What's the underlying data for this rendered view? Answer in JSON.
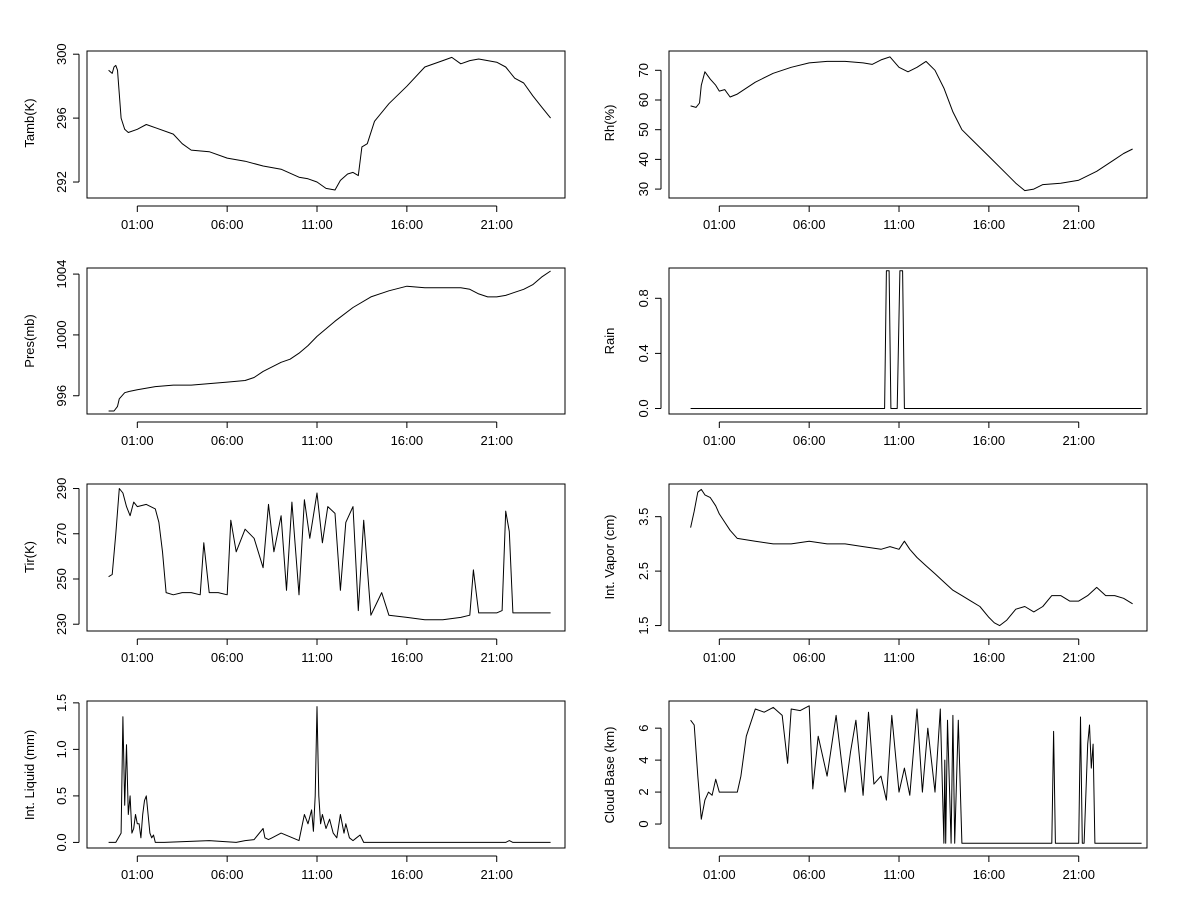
{
  "figure": {
    "background": "#ffffff",
    "line_color": "#000000"
  },
  "chart_data": [
    {
      "type": "line",
      "ylabel": "Tamb(K)",
      "xlabel": "",
      "x_ticks": [
        "01:00",
        "06:00",
        "11:00",
        "16:00",
        "21:00"
      ],
      "x_tick_hours": [
        1,
        6,
        11,
        16,
        21
      ],
      "xlim": [
        -1.8,
        24.8
      ],
      "y_ticks": [
        "292",
        "296",
        "300"
      ],
      "y_tick_values": [
        292,
        296,
        300
      ],
      "ylim": [
        291,
        300.2
      ],
      "series": [
        {
          "name": "Tamb",
          "x": [
            -0.6,
            -0.4,
            -0.3,
            -0.2,
            -0.1,
            0,
            0.1,
            0.3,
            0.5,
            1,
            1.5,
            2,
            3,
            3.5,
            4,
            5,
            6,
            7,
            8,
            9,
            10,
            10.5,
            11,
            11.5,
            12,
            12.3,
            12.7,
            13,
            13.3,
            13.5,
            13.8,
            14.2,
            15,
            16,
            17,
            18,
            18.5,
            19,
            19.5,
            20,
            20.5,
            21,
            21.5,
            22,
            22.5,
            23,
            23.5,
            24
          ],
          "y": [
            299,
            298.8,
            299.2,
            299.3,
            299,
            297.5,
            296,
            295.3,
            295.1,
            295.3,
            295.6,
            295.4,
            295,
            294.4,
            294,
            293.9,
            293.5,
            293.3,
            293,
            292.8,
            292.3,
            292.2,
            292,
            291.6,
            291.5,
            292.1,
            292.5,
            292.6,
            292.4,
            294.2,
            294.4,
            295.8,
            296.9,
            298,
            299.2,
            299.6,
            299.8,
            299.4,
            299.6,
            299.7,
            299.6,
            299.5,
            299.2,
            298.5,
            298.2,
            297.4,
            296.7,
            296
          ]
        }
      ]
    },
    {
      "type": "line",
      "ylabel": "Rh(%)",
      "xlabel": "",
      "x_ticks": [
        "01:00",
        "06:00",
        "11:00",
        "16:00",
        "21:00"
      ],
      "x_tick_hours": [
        1,
        6,
        11,
        16,
        21
      ],
      "xlim": [
        -1.8,
        24.8
      ],
      "y_ticks": [
        "30",
        "40",
        "50",
        "60",
        "70"
      ],
      "y_tick_values": [
        30,
        40,
        50,
        60,
        70
      ],
      "ylim": [
        27,
        76.5
      ],
      "series": [
        {
          "name": "Rh",
          "x": [
            -0.6,
            -0.3,
            -0.1,
            0,
            0.2,
            0.5,
            0.8,
            1,
            1.3,
            1.6,
            2,
            3,
            4,
            5,
            6,
            7,
            8,
            9,
            9.5,
            10,
            10.5,
            11,
            11.5,
            12,
            12.5,
            13,
            13.5,
            14,
            14.5,
            15,
            16,
            17,
            17.5,
            18,
            18.5,
            19,
            20,
            21,
            22,
            23,
            23.5,
            24
          ],
          "y": [
            58,
            57.5,
            59,
            65,
            69.5,
            67,
            65,
            63,
            63.5,
            61,
            62,
            66,
            69,
            71,
            72.5,
            73,
            73,
            72.5,
            72,
            73.5,
            74.5,
            71,
            69.5,
            71,
            73,
            70,
            64,
            56,
            50,
            47,
            41,
            35,
            32,
            29.5,
            30,
            31.5,
            32,
            33,
            36,
            40,
            42,
            43.5
          ]
        }
      ]
    },
    {
      "type": "line",
      "ylabel": "Pres(mb)",
      "xlabel": "",
      "x_ticks": [
        "01:00",
        "06:00",
        "11:00",
        "16:00",
        "21:00"
      ],
      "x_tick_hours": [
        1,
        6,
        11,
        16,
        21
      ],
      "xlim": [
        -1.8,
        24.8
      ],
      "y_ticks": [
        "996",
        "1000",
        "1004"
      ],
      "y_tick_values": [
        996,
        1000,
        1004
      ],
      "ylim": [
        994.8,
        1004.4
      ],
      "series": [
        {
          "name": "Pres",
          "x": [
            -0.6,
            -0.3,
            -0.1,
            0,
            0.3,
            0.6,
            1,
            2,
            3,
            4,
            5,
            6,
            7,
            7.5,
            8,
            9,
            9.5,
            10,
            10.5,
            11,
            12,
            13,
            14,
            15,
            16,
            17,
            18,
            19,
            19.5,
            20,
            20.5,
            21,
            21.5,
            22,
            22.5,
            23,
            23.5,
            24
          ],
          "y": [
            995,
            995,
            995.3,
            995.8,
            996.2,
            996.3,
            996.4,
            996.6,
            996.7,
            996.7,
            996.8,
            996.9,
            997,
            997.2,
            997.6,
            998.2,
            998.4,
            998.8,
            999.3,
            999.9,
            1000.9,
            1001.8,
            1002.5,
            1002.9,
            1003.2,
            1003.1,
            1003.1,
            1003.1,
            1003,
            1002.7,
            1002.5,
            1002.5,
            1002.6,
            1002.8,
            1003,
            1003.3,
            1003.8,
            1004.2
          ]
        }
      ]
    },
    {
      "type": "line",
      "ylabel": "Rain",
      "xlabel": "",
      "x_ticks": [
        "01:00",
        "06:00",
        "11:00",
        "16:00",
        "21:00"
      ],
      "x_tick_hours": [
        1,
        6,
        11,
        16,
        21
      ],
      "xlim": [
        -1.8,
        24.8
      ],
      "y_ticks": [
        "0.0",
        "0.4",
        "0.8"
      ],
      "y_tick_values": [
        0,
        0.4,
        0.8
      ],
      "ylim": [
        -0.04,
        1.02
      ],
      "series": [
        {
          "name": "Rain",
          "x": [
            -0.6,
            10.2,
            10.3,
            10.45,
            10.55,
            10.7,
            10.9,
            11.05,
            11.2,
            11.3,
            24.5
          ],
          "y": [
            0,
            0,
            1,
            1,
            0,
            0,
            0,
            1,
            1,
            0,
            0
          ]
        }
      ]
    },
    {
      "type": "line",
      "ylabel": "Tir(K)",
      "xlabel": "",
      "x_ticks": [
        "01:00",
        "06:00",
        "11:00",
        "16:00",
        "21:00"
      ],
      "x_tick_hours": [
        1,
        6,
        11,
        16,
        21
      ],
      "xlim": [
        -1.8,
        24.8
      ],
      "y_ticks": [
        "230",
        "250",
        "270",
        "290"
      ],
      "y_tick_values": [
        230,
        250,
        270,
        290
      ],
      "ylim": [
        227,
        292
      ],
      "series": [
        {
          "name": "Tir",
          "x": [
            -0.6,
            -0.4,
            -0.2,
            0,
            0.2,
            0.4,
            0.6,
            0.8,
            1,
            1.5,
            2,
            2.2,
            2.4,
            2.6,
            3,
            3.5,
            4,
            4.5,
            4.7,
            5,
            5.5,
            6,
            6.2,
            6.5,
            7,
            7.5,
            8,
            8.3,
            8.6,
            9,
            9.3,
            9.6,
            10,
            10.3,
            10.6,
            11,
            11.3,
            11.6,
            12,
            12.3,
            12.6,
            13,
            13.3,
            13.6,
            14,
            14.3,
            14.6,
            15,
            16,
            17,
            18,
            19,
            19.5,
            19.7,
            20,
            21,
            21.3,
            21.5,
            21.7,
            21.9,
            22,
            22.5,
            23,
            24
          ],
          "y": [
            251,
            252,
            270,
            290,
            288,
            282,
            278,
            284,
            282,
            283,
            281,
            275,
            262,
            244,
            243,
            244,
            244,
            243,
            266,
            244,
            244,
            243,
            276,
            262,
            272,
            268,
            255,
            283,
            262,
            278,
            245,
            284,
            243,
            285,
            268,
            288,
            266,
            282,
            279,
            245,
            275,
            282,
            236,
            276,
            234,
            239,
            244,
            234,
            233,
            232,
            232,
            233,
            234,
            254,
            235,
            235,
            236,
            280,
            271,
            235,
            235,
            235,
            235,
            235
          ]
        }
      ]
    },
    {
      "type": "line",
      "ylabel": "Int. Vapor (cm)",
      "xlabel": "",
      "x_ticks": [
        "01:00",
        "06:00",
        "11:00",
        "16:00",
        "21:00"
      ],
      "x_tick_hours": [
        1,
        6,
        11,
        16,
        21
      ],
      "xlim": [
        -1.8,
        24.8
      ],
      "y_ticks": [
        "1.5",
        "2.5",
        "3.5"
      ],
      "y_tick_values": [
        1.5,
        2.5,
        3.5
      ],
      "ylim": [
        1.4,
        4.1
      ],
      "series": [
        {
          "name": "Int. Vapor",
          "x": [
            -0.6,
            -0.4,
            -0.2,
            0,
            0.2,
            0.5,
            0.8,
            1,
            1.3,
            1.6,
            2,
            3,
            4,
            5,
            6,
            7,
            8,
            9,
            10,
            10.5,
            11,
            11.3,
            11.6,
            12,
            12.5,
            13,
            13.5,
            14,
            14.5,
            15,
            15.5,
            16,
            16.3,
            16.6,
            17,
            17.5,
            18,
            18.5,
            19,
            19.5,
            20,
            20.5,
            21,
            21.5,
            22,
            22.5,
            23,
            23.5,
            24
          ],
          "y": [
            3.3,
            3.6,
            3.95,
            4,
            3.9,
            3.85,
            3.7,
            3.55,
            3.4,
            3.25,
            3.1,
            3.05,
            3,
            3,
            3.05,
            3,
            3,
            2.95,
            2.9,
            2.95,
            2.9,
            3.05,
            2.9,
            2.75,
            2.6,
            2.45,
            2.3,
            2.15,
            2.05,
            1.95,
            1.85,
            1.65,
            1.55,
            1.5,
            1.6,
            1.8,
            1.85,
            1.75,
            1.85,
            2.05,
            2.05,
            1.95,
            1.95,
            2.05,
            2.2,
            2.05,
            2.05,
            2,
            1.9
          ]
        }
      ]
    },
    {
      "type": "line",
      "ylabel": "Int. Liquid (mm)",
      "xlabel": "",
      "x_ticks": [
        "01:00",
        "06:00",
        "11:00",
        "16:00",
        "21:00"
      ],
      "x_tick_hours": [
        1,
        6,
        11,
        16,
        21
      ],
      "xlim": [
        -1.8,
        24.8
      ],
      "y_ticks": [
        "0.0",
        "0.5",
        "1.0",
        "1.5"
      ],
      "y_tick_values": [
        0,
        0.5,
        1,
        1.5
      ],
      "ylim": [
        -0.06,
        1.52
      ],
      "series": [
        {
          "name": "Int. Liquid",
          "x": [
            -0.6,
            -0.2,
            0.1,
            0.2,
            0.3,
            0.4,
            0.5,
            0.6,
            0.7,
            0.8,
            0.9,
            1,
            1.1,
            1.2,
            1.3,
            1.4,
            1.5,
            1.6,
            1.7,
            1.8,
            1.9,
            2,
            2.5,
            5,
            6.5,
            7,
            7.5,
            8,
            8.1,
            8.3,
            8.5,
            9,
            9.5,
            10,
            10.3,
            10.5,
            10.7,
            10.8,
            10.9,
            11,
            11.1,
            11.2,
            11.3,
            11.5,
            11.7,
            11.9,
            12.1,
            12.3,
            12.5,
            12.6,
            12.8,
            13,
            13.2,
            13.4,
            13.6,
            14,
            21.5,
            21.7,
            21.9,
            22,
            24
          ],
          "y": [
            0,
            0,
            0.1,
            1.35,
            0.4,
            1.05,
            0.3,
            0.5,
            0.1,
            0.15,
            0.3,
            0.2,
            0.2,
            0.05,
            0.3,
            0.45,
            0.5,
            0.3,
            0.1,
            0.05,
            0.08,
            0,
            0,
            0.02,
            0,
            0.02,
            0.03,
            0.15,
            0.05,
            0.03,
            0.05,
            0.1,
            0.06,
            0.02,
            0.3,
            0.2,
            0.35,
            0.12,
            0.5,
            1.46,
            0.5,
            0.2,
            0.3,
            0.15,
            0.25,
            0.1,
            0.05,
            0.3,
            0.1,
            0.2,
            0.05,
            0.02,
            0.05,
            0.08,
            0,
            0,
            0,
            0.02,
            0,
            0,
            0
          ]
        }
      ]
    },
    {
      "type": "line",
      "ylabel": "Cloud Base (km)",
      "xlabel": "",
      "x_ticks": [
        "01:00",
        "06:00",
        "11:00",
        "16:00",
        "21:00"
      ],
      "x_tick_hours": [
        1,
        6,
        11,
        16,
        21
      ],
      "xlim": [
        -1.8,
        24.8
      ],
      "y_ticks": [
        "0",
        "2",
        "4",
        "6"
      ],
      "y_tick_values": [
        0,
        2,
        4,
        6
      ],
      "ylim": [
        -1.5,
        7.7
      ],
      "series": [
        {
          "name": "Cloud Base",
          "x": [
            -0.6,
            -0.4,
            -0.2,
            0,
            0.2,
            0.4,
            0.6,
            0.8,
            1,
            1.5,
            2,
            2.2,
            2.5,
            3,
            3.5,
            4,
            4.5,
            4.8,
            5,
            5.5,
            6,
            6.2,
            6.5,
            7,
            7.5,
            8,
            8.3,
            8.6,
            9,
            9.3,
            9.6,
            10,
            10.3,
            10.6,
            11,
            11.3,
            11.6,
            12,
            12.3,
            12.6,
            13,
            13.3,
            13.5,
            13.55,
            13.6,
            13.7,
            13.9,
            14,
            14.1,
            14.3,
            14.5,
            15,
            19,
            19.5,
            19.6,
            19.7,
            19.8,
            20,
            21,
            21.1,
            21.2,
            21.3,
            21.5,
            21.6,
            21.7,
            21.8,
            21.9,
            22,
            22.5,
            24.5
          ],
          "y": [
            6.5,
            6.2,
            3,
            0.3,
            1.5,
            2,
            1.8,
            2.8,
            2,
            2,
            2,
            3,
            5.5,
            7.2,
            7,
            7.3,
            6.8,
            3.8,
            7.2,
            7.1,
            7.4,
            2.2,
            5.5,
            3,
            6.8,
            2,
            4.5,
            6.5,
            1.8,
            7,
            2.5,
            3,
            1.5,
            6.8,
            2,
            3.5,
            1.8,
            7.2,
            2,
            6,
            2,
            7.2,
            -1.2,
            4,
            -1.2,
            6.5,
            -1.2,
            6.8,
            -1.2,
            6.5,
            -1.2,
            -1.2,
            -1.2,
            -1.2,
            5.8,
            -1.2,
            -1.2,
            -1.2,
            -1.2,
            6.7,
            -1.2,
            -1.2,
            5,
            6.2,
            3.5,
            5,
            -1.2,
            -1.2,
            -1.2,
            -1.2
          ]
        }
      ]
    }
  ]
}
